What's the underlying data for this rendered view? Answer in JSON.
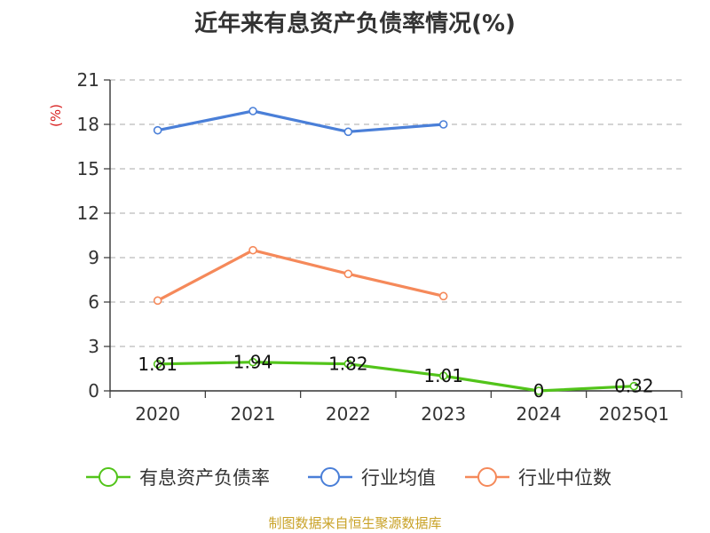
{
  "chart_data": {
    "type": "line",
    "title": "近年来有息资产负债率情况(%)",
    "ylabel": "(%)",
    "xlabel": "",
    "ylim": [
      0,
      21
    ],
    "yticks": [
      0,
      3,
      6,
      9,
      12,
      15,
      18,
      21
    ],
    "grid": true,
    "legend_position": "bottom",
    "categories": [
      "2020",
      "2021",
      "2022",
      "2023",
      "2024",
      "2025Q1"
    ],
    "series": [
      {
        "name": "有息资产负债率",
        "color": "#52c41a",
        "values": [
          1.81,
          1.94,
          1.82,
          1.01,
          0,
          0.32
        ],
        "labels": [
          "1.81",
          "1.94",
          "1.82",
          "1.01",
          "0",
          "0.32"
        ]
      },
      {
        "name": "行业均值",
        "color": "#4a7fd8",
        "values": [
          17.6,
          18.9,
          17.5,
          18.0,
          null,
          null
        ]
      },
      {
        "name": "行业中位数",
        "color": "#f5895a",
        "values": [
          6.1,
          9.5,
          7.9,
          6.4,
          null,
          null
        ]
      }
    ]
  },
  "footer": {
    "source": "制图数据来自恒生聚源数据库"
  }
}
